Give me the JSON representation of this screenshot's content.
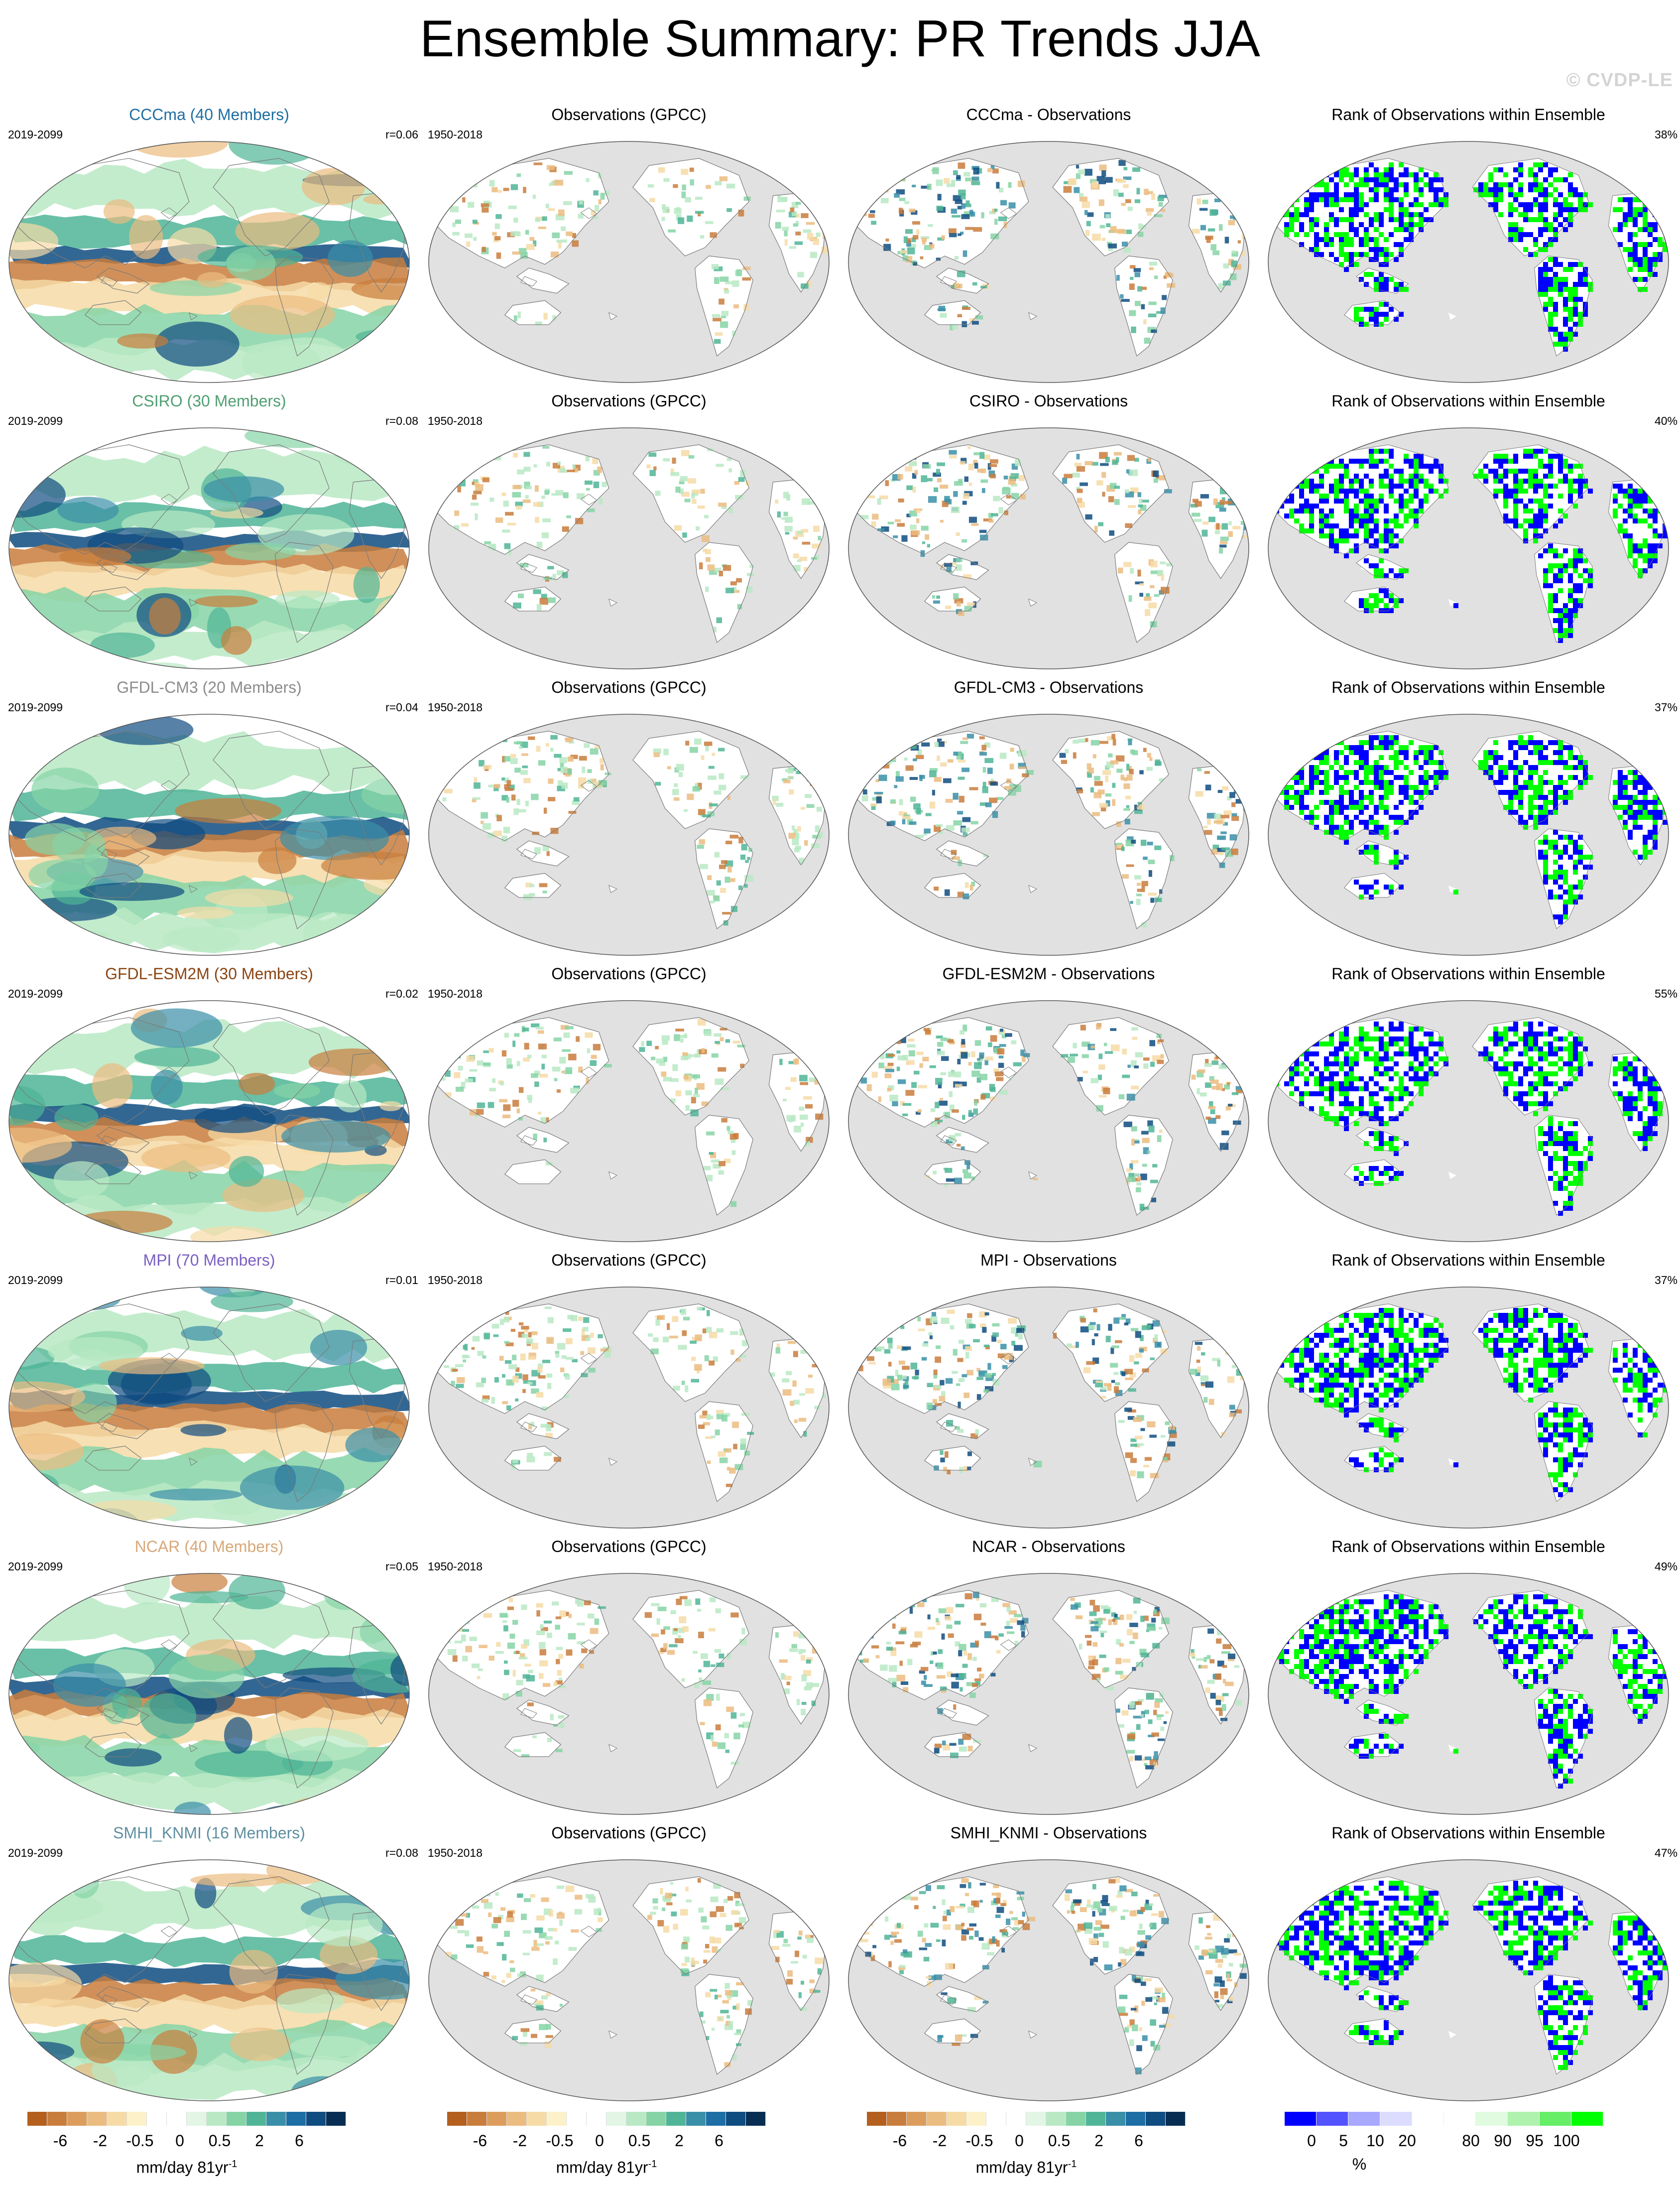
{
  "title": "Ensemble Summary: PR Trends JJA",
  "watermark": "© CVDP-LE",
  "rows": [
    {
      "model": "CCCma (40 Members)",
      "color": "#1f6fa3",
      "model_period": "2019-2099",
      "corr": "r=0.06",
      "obs_title": "Observations (GPCC)",
      "obs_period": "1950-2018",
      "diff_title": "CCCma - Observations",
      "rank_title": "Rank of Observations within Ensemble",
      "rank_pct": "38%"
    },
    {
      "model": "CSIRO (30 Members)",
      "color": "#4f9f72",
      "model_period": "2019-2099",
      "corr": "r=0.08",
      "obs_title": "Observations (GPCC)",
      "obs_period": "1950-2018",
      "diff_title": "CSIRO - Observations",
      "rank_title": "Rank of Observations within Ensemble",
      "rank_pct": "40%"
    },
    {
      "model": "GFDL-CM3 (20 Members)",
      "color": "#8c8c8c",
      "model_period": "2019-2099",
      "corr": "r=0.04",
      "obs_title": "Observations (GPCC)",
      "obs_period": "1950-2018",
      "diff_title": "GFDL-CM3 - Observations",
      "rank_title": "Rank of Observations within Ensemble",
      "rank_pct": "37%"
    },
    {
      "model": "GFDL-ESM2M (30 Members)",
      "color": "#8b4513",
      "model_period": "2019-2099",
      "corr": "r=0.02",
      "obs_title": "Observations (GPCC)",
      "obs_period": "1950-2018",
      "diff_title": "GFDL-ESM2M - Observations",
      "rank_title": "Rank of Observations within Ensemble",
      "rank_pct": "55%"
    },
    {
      "model": "MPI (70 Members)",
      "color": "#7b5fc2",
      "model_period": "2019-2099",
      "corr": "r=0.01",
      "obs_title": "Observations (GPCC)",
      "obs_period": "1950-2018",
      "diff_title": "MPI - Observations",
      "rank_title": "Rank of Observations within Ensemble",
      "rank_pct": "37%"
    },
    {
      "model": "NCAR (40 Members)",
      "color": "#d8a878",
      "model_period": "2019-2099",
      "corr": "r=0.05",
      "obs_title": "Observations (GPCC)",
      "obs_period": "1950-2018",
      "diff_title": "NCAR - Observations",
      "rank_title": "Rank of Observations within Ensemble",
      "rank_pct": "49%"
    },
    {
      "model": "SMHI_KNMI (16 Members)",
      "color": "#5f8fa0",
      "model_period": "2019-2099",
      "corr": "r=0.08",
      "obs_title": "Observations (GPCC)",
      "obs_period": "1950-2018",
      "diff_title": "SMHI_KNMI - Observations",
      "rank_title": "Rank of Observations within Ensemble",
      "rank_pct": "47%"
    }
  ],
  "trend_colorbar": {
    "colors": [
      "#b45f1e",
      "#c97d3c",
      "#dc9d5c",
      "#ebbc80",
      "#f6dba6",
      "#fcf1c8",
      "#ffffff",
      "#ffffff",
      "#e3f6e6",
      "#b9e9c4",
      "#86d4a6",
      "#4fb596",
      "#3a8fa8",
      "#1e6ea6",
      "#0f4c80",
      "#082d52"
    ],
    "ticks": [
      "-6",
      "-2",
      "-0.5",
      "0",
      "0.5",
      "2",
      "6"
    ],
    "tick_positions": [
      2,
      4,
      6,
      8,
      10,
      12,
      14
    ],
    "unit": "mm/day 81yr",
    "unit_exponent": "-1"
  },
  "rank_colorbar": {
    "colors": [
      "#0000ff",
      "#5252ff",
      "#a8a8ff",
      "#dcdcff",
      "#ffffff",
      "#ffffff",
      "#e0fbe0",
      "#aef2ae",
      "#66ee66",
      "#00ff00"
    ],
    "ticks": [
      "0",
      "5",
      "10",
      "20",
      "80",
      "90",
      "95",
      "100"
    ],
    "unit": "%"
  },
  "map_colors": {
    "ocean": "#ffffff",
    "land_gray": "#e1e1e1",
    "coast": "#7a7a7a",
    "trend": [
      "#c97d3c",
      "#ebbc80",
      "#f6dba6",
      "#b9e9c4",
      "#86d4a6",
      "#4fb596",
      "#3a8fa8",
      "#0f4c80"
    ],
    "rank": [
      "#0000ff",
      "#00ff00"
    ]
  }
}
